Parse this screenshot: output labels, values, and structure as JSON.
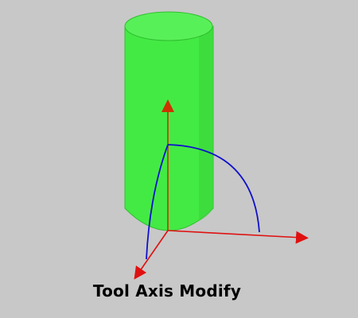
{
  "caption": "Tool Axis Modify",
  "colors": {
    "background": "#c8c8c8",
    "tool_fill": "#44ea44",
    "tool_top": "#58f058",
    "tool_edge": "#2fbf2f",
    "axis_z": "#cc3300",
    "axis_x": "#e01010",
    "axis_y": "#e01010",
    "arc": "#1010cc"
  },
  "icons": {
    "tool": "cylindrical-tool-icon",
    "axes": "coordinate-axes-icon",
    "arc": "rotation-arc-icon"
  }
}
